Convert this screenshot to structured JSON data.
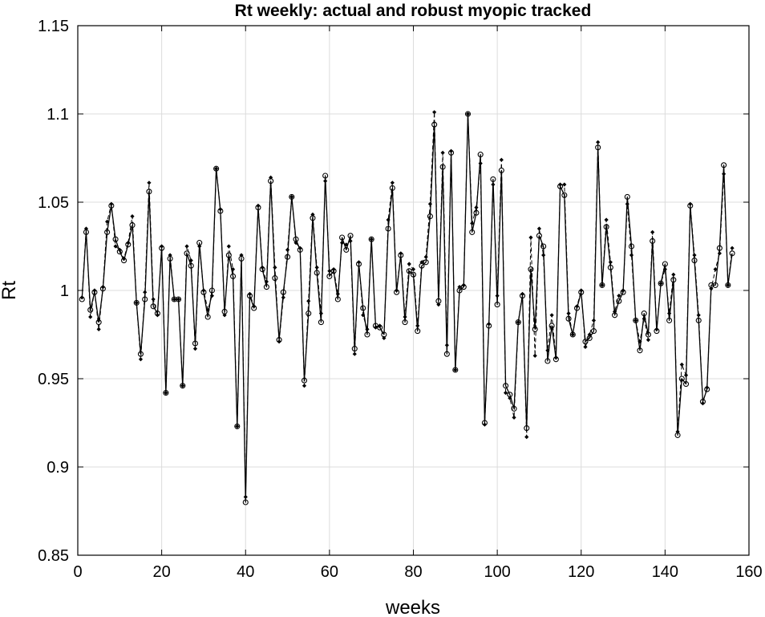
{
  "chart_data": {
    "type": "line",
    "title": "Rt weekly: actual and robust myopic tracked",
    "xlabel": "weeks",
    "ylabel": "Rt",
    "xlim": [
      0,
      160
    ],
    "ylim": [
      0.85,
      1.15
    ],
    "xticks": [
      "0",
      "20",
      "40",
      "60",
      "80",
      "100",
      "120",
      "140",
      "160"
    ],
    "yticks": [
      "0.85",
      "0.9",
      "0.95",
      "1",
      "1.05",
      "1.1",
      "1.15"
    ],
    "grid": true,
    "x": [
      1,
      2,
      3,
      4,
      5,
      6,
      7,
      8,
      9,
      10,
      11,
      12,
      13,
      14,
      15,
      16,
      17,
      18,
      19,
      20,
      21,
      22,
      23,
      24,
      25,
      26,
      27,
      28,
      29,
      30,
      31,
      32,
      33,
      34,
      35,
      36,
      37,
      38,
      39,
      40,
      41,
      42,
      43,
      44,
      45,
      46,
      47,
      48,
      49,
      50,
      51,
      52,
      53,
      54,
      55,
      56,
      57,
      58,
      59,
      60,
      61,
      62,
      63,
      64,
      65,
      66,
      67,
      68,
      69,
      70,
      71,
      72,
      73,
      74,
      75,
      76,
      77,
      78,
      79,
      80,
      81,
      82,
      83,
      84,
      85,
      86,
      87,
      88,
      89,
      90,
      91,
      92,
      93,
      94,
      95,
      96,
      97,
      98,
      99,
      100,
      101,
      102,
      103,
      104,
      105,
      106,
      107,
      108,
      109,
      110,
      111,
      112,
      113,
      114,
      115,
      116,
      117,
      118,
      119,
      120,
      121,
      122,
      123,
      124,
      125,
      126,
      127,
      128,
      129,
      130,
      131,
      132,
      133,
      134,
      135,
      136,
      137,
      138,
      139,
      140,
      141,
      142,
      143,
      144,
      145,
      146,
      147,
      148,
      149,
      150,
      151,
      152,
      153,
      154,
      155,
      156
    ],
    "series": [
      {
        "marker": "circle",
        "line": "solid",
        "values": [
          0.995,
          1.033,
          0.989,
          0.999,
          0.982,
          1.001,
          1.033,
          1.048,
          1.029,
          1.022,
          1.017,
          1.026,
          1.037,
          0.993,
          0.964,
          0.995,
          1.056,
          0.991,
          0.987,
          1.024,
          0.942,
          1.018,
          0.995,
          0.995,
          0.946,
          1.021,
          1.014,
          0.97,
          1.027,
          0.999,
          0.985,
          1.0,
          1.069,
          1.045,
          0.988,
          1.02,
          1.008,
          0.923,
          1.018,
          0.88,
          0.997,
          0.99,
          1.047,
          1.012,
          1.002,
          1.062,
          1.007,
          0.972,
          0.999,
          1.019,
          1.053,
          1.029,
          1.023,
          0.949,
          0.987,
          1.041,
          1.01,
          0.982,
          1.065,
          1.008,
          1.011,
          0.995,
          1.03,
          1.023,
          1.031,
          0.967,
          1.015,
          0.99,
          0.975,
          1.029,
          0.98,
          0.979,
          0.975,
          1.035,
          1.058,
          0.999,
          1.02,
          0.982,
          1.011,
          1.009,
          0.977,
          1.014,
          1.016,
          1.042,
          1.094,
          0.994,
          1.07,
          0.964,
          1.078,
          0.955,
          1.0,
          1.002,
          1.1,
          1.033,
          1.044,
          1.077,
          0.925,
          0.98,
          1.063,
          0.992,
          1.068,
          0.946,
          0.941,
          0.933,
          0.982,
          0.997,
          0.922,
          1.012,
          0.978,
          1.031,
          1.025,
          0.96,
          0.98,
          0.961,
          1.059,
          1.054,
          0.984,
          0.975,
          0.99,
          0.999,
          0.971,
          0.973,
          0.977,
          1.081,
          1.003,
          1.036,
          1.013,
          0.986,
          0.994,
          0.999,
          1.053,
          1.025,
          0.983,
          0.966,
          0.987,
          0.975,
          1.028,
          0.977,
          1.004,
          1.015,
          0.983,
          1.006,
          0.918,
          0.95,
          0.947,
          1.048,
          1.017,
          0.983,
          0.937,
          0.944,
          1.003,
          1.003,
          1.024,
          1.071,
          1.003,
          1.021
        ]
      },
      {
        "marker": "diamond",
        "line": "dashed",
        "values": [
          0.996,
          1.035,
          0.985,
          1.0,
          0.978,
          1.002,
          1.039,
          1.049,
          1.025,
          1.023,
          1.018,
          1.027,
          1.042,
          0.993,
          0.961,
          0.999,
          1.061,
          0.995,
          0.986,
          1.025,
          0.942,
          1.02,
          0.995,
          0.995,
          0.946,
          1.025,
          1.017,
          0.967,
          1.025,
          1.0,
          0.989,
          0.997,
          1.069,
          1.046,
          0.986,
          1.025,
          1.012,
          0.923,
          1.02,
          0.883,
          0.998,
          0.991,
          1.048,
          1.013,
          1.005,
          1.064,
          1.013,
          0.971,
          0.996,
          1.023,
          1.053,
          1.027,
          1.024,
          0.946,
          0.994,
          1.043,
          1.013,
          0.987,
          1.062,
          1.011,
          1.012,
          0.998,
          1.027,
          1.026,
          1.028,
          0.964,
          1.016,
          0.986,
          0.978,
          1.029,
          0.979,
          0.98,
          0.973,
          1.04,
          1.061,
          1.0,
          1.021,
          0.985,
          1.015,
          1.012,
          0.98,
          1.016,
          1.019,
          1.049,
          1.101,
          0.992,
          1.078,
          0.969,
          1.079,
          0.955,
          1.002,
          1.003,
          1.1,
          1.038,
          1.047,
          1.072,
          0.924,
          0.981,
          1.06,
          0.997,
          1.074,
          0.942,
          0.939,
          0.928,
          0.982,
          0.998,
          0.917,
          1.03,
          0.963,
          1.035,
          1.02,
          0.966,
          0.986,
          0.962,
          1.06,
          1.06,
          0.987,
          0.975,
          0.991,
          1.0,
          0.968,
          0.975,
          0.983,
          1.084,
          1.003,
          1.04,
          1.016,
          0.988,
          0.997,
          1.0,
          1.049,
          1.02,
          0.983,
          0.971,
          0.984,
          0.972,
          1.033,
          0.978,
          1.004,
          1.012,
          0.987,
          1.009,
          0.92,
          0.958,
          0.952,
          1.049,
          1.02,
          0.986,
          0.936,
          0.945,
          1.001,
          1.012,
          1.021,
          1.066,
          1.003,
          1.024
        ]
      }
    ],
    "colors": {
      "line": "#000000",
      "grid": "#dcdcdc",
      "background": "#ffffff"
    }
  }
}
